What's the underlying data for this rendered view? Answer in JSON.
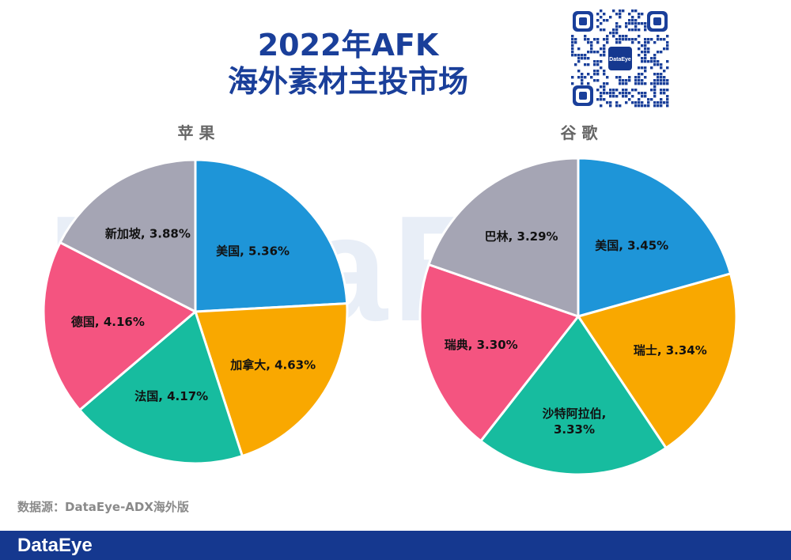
{
  "title_line1": "2022年AFK",
  "title_line2": "海外素材主投市场",
  "watermark": "DataEye",
  "qr_logo_text": "DataEye",
  "source": "数据源：DataEye-ADX海外版",
  "footer_brand": "DataEye",
  "colors": {
    "blue": "#1e95d8",
    "orange": "#f9a800",
    "teal": "#17bc9f",
    "pink": "#f45480",
    "gray": "#a5a5b4",
    "title": "#1a3f9a",
    "footer": "#15388f"
  },
  "chart_data": [
    {
      "type": "pie",
      "title": "苹 果",
      "slices": [
        {
          "label": "美国",
          "value_text": "5.36%",
          "value": 5.36,
          "color": "#1e95d8"
        },
        {
          "label": "加拿大",
          "value_text": "4.63%",
          "value": 4.63,
          "color": "#f9a800"
        },
        {
          "label": "法国",
          "value_text": "4.17%",
          "value": 4.17,
          "color": "#17bc9f"
        },
        {
          "label": "德国",
          "value_text": "4.16%",
          "value": 4.16,
          "color": "#f45480"
        },
        {
          "label": "新加坡",
          "value_text": "3.88%",
          "value": 3.88,
          "color": "#a5a5b4"
        }
      ]
    },
    {
      "type": "pie",
      "title": "谷 歌",
      "slices": [
        {
          "label": "美国",
          "value_text": "3.45%",
          "value": 3.45,
          "color": "#1e95d8"
        },
        {
          "label": "瑞士",
          "value_text": "3.34%",
          "value": 3.34,
          "color": "#f9a800"
        },
        {
          "label": "沙特阿拉伯,",
          "value_text": "3.33%",
          "value": 3.33,
          "color": "#17bc9f"
        },
        {
          "label": "瑞典",
          "value_text": "3.30%",
          "value": 3.3,
          "color": "#f45480"
        },
        {
          "label": "巴林",
          "value_text": "3.29%",
          "value": 3.29,
          "color": "#a5a5b4"
        }
      ]
    }
  ]
}
